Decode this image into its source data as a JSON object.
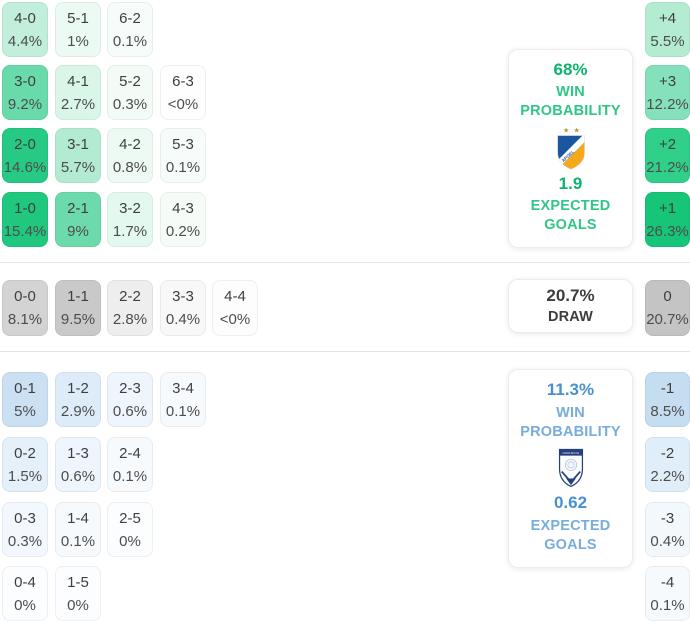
{
  "colors": {
    "home_accent_strong": "#0db46e",
    "home_accent": "#2fc687",
    "away_accent_strong": "#4890d0",
    "away_accent": "#77acdc",
    "draw_text": "#3d3d3d",
    "divider": "#e4e4e4"
  },
  "sections": {
    "home": {
      "rows": [
        [
          {
            "score": "4-0",
            "pct": "4.4%",
            "color": "#c1efdb"
          },
          {
            "score": "5-1",
            "pct": "1%",
            "color": "#ebfaf3"
          },
          {
            "score": "6-2",
            "pct": "0.1%",
            "color": "#f6fcf9"
          }
        ],
        [
          {
            "score": "3-0",
            "pct": "9.2%",
            "color": "#69daa9"
          },
          {
            "score": "4-1",
            "pct": "2.7%",
            "color": "#d9f6e9"
          },
          {
            "score": "5-2",
            "pct": "0.3%",
            "color": "#f3fbf7"
          },
          {
            "score": "6-3",
            "pct": "<0%",
            "color": "#fdfefd"
          }
        ],
        [
          {
            "score": "2-0",
            "pct": "14.6%",
            "color": "#27ca84"
          },
          {
            "score": "3-1",
            "pct": "5.7%",
            "color": "#b2ebd1"
          },
          {
            "score": "4-2",
            "pct": "0.8%",
            "color": "#edfaf4"
          },
          {
            "score": "5-3",
            "pct": "0.1%",
            "color": "#f6fcf9"
          }
        ],
        [
          {
            "score": "1-0",
            "pct": "15.4%",
            "color": "#1fc87e"
          },
          {
            "score": "2-1",
            "pct": "9%",
            "color": "#6cdaab"
          },
          {
            "score": "3-2",
            "pct": "1.7%",
            "color": "#e3f8ee"
          },
          {
            "score": "4-3",
            "pct": "0.2%",
            "color": "#f5fcf8"
          }
        ]
      ],
      "margins": [
        {
          "label": "+4",
          "pct": "5.5%",
          "color": "#b4ecd2"
        },
        {
          "label": "+3",
          "pct": "12.2%",
          "color": "#85e1bb"
        },
        {
          "label": "+2",
          "pct": "21.2%",
          "color": "#30cf8a"
        },
        {
          "label": "+1",
          "pct": "26.3%",
          "color": "#16c578"
        }
      ],
      "panel": {
        "probability": "68%",
        "win_line1": "WIN",
        "win_line2": "PROBABILITY",
        "expected_goals": "1.9",
        "xg_line1": "EXPECTED",
        "xg_line2": "GOALS",
        "crest_icon": "apoel-crest",
        "crest_text": "APOEL"
      }
    },
    "draw": {
      "rows": [
        [
          {
            "score": "0-0",
            "pct": "8.1%",
            "color": "#d3d3d3"
          },
          {
            "score": "1-1",
            "pct": "9.5%",
            "color": "#c9c9c9"
          },
          {
            "score": "2-2",
            "pct": "2.8%",
            "color": "#eeeeee"
          },
          {
            "score": "3-3",
            "pct": "0.4%",
            "color": "#f8f8f8"
          },
          {
            "score": "4-4",
            "pct": "<0%",
            "color": "#fdfdfd"
          }
        ]
      ],
      "margins": [
        {
          "label": "0",
          "pct": "20.7%",
          "color": "#c4c4c4"
        }
      ],
      "panel": {
        "probability": "20.7%",
        "label": "DRAW"
      }
    },
    "away": {
      "rows": [
        [
          {
            "score": "0-1",
            "pct": "5%",
            "color": "#cbe1f3"
          },
          {
            "score": "1-2",
            "pct": "2.9%",
            "color": "#ddecf8"
          },
          {
            "score": "2-3",
            "pct": "0.6%",
            "color": "#eff5fc"
          },
          {
            "score": "3-4",
            "pct": "0.1%",
            "color": "#f7fafd"
          }
        ],
        [
          {
            "score": "0-2",
            "pct": "1.5%",
            "color": "#e4f0fa"
          },
          {
            "score": "1-3",
            "pct": "0.6%",
            "color": "#eff5fc"
          },
          {
            "score": "2-4",
            "pct": "0.1%",
            "color": "#f7fafd"
          }
        ],
        [
          {
            "score": "0-3",
            "pct": "0.3%",
            "color": "#f2f8fd"
          },
          {
            "score": "1-4",
            "pct": "0.1%",
            "color": "#f7fafd"
          },
          {
            "score": "2-5",
            "pct": "0%",
            "color": "#fbfdfe"
          }
        ],
        [
          {
            "score": "0-4",
            "pct": "0%",
            "color": "#fbfdfe"
          },
          {
            "score": "1-5",
            "pct": "0%",
            "color": "#fbfdfe"
          }
        ]
      ],
      "margins": [
        {
          "label": "-1",
          "pct": "8.5%",
          "color": "#c5ddf1"
        },
        {
          "label": "-2",
          "pct": "2.2%",
          "color": "#e0eef9"
        },
        {
          "label": "-3",
          "pct": "0.4%",
          "color": "#f3f8fd"
        },
        {
          "label": "-4",
          "pct": "0.1%",
          "color": "#f7fafd"
        }
      ],
      "panel": {
        "probability": "11.3%",
        "win_line1": "WIN",
        "win_line2": "PROBABILITY",
        "expected_goals": "0.62",
        "xg_line1": "EXPECTED",
        "xg_line2": "GOALS",
        "crest_icon": "away-team-crest",
        "crest_text": "OMONOIA"
      }
    }
  }
}
